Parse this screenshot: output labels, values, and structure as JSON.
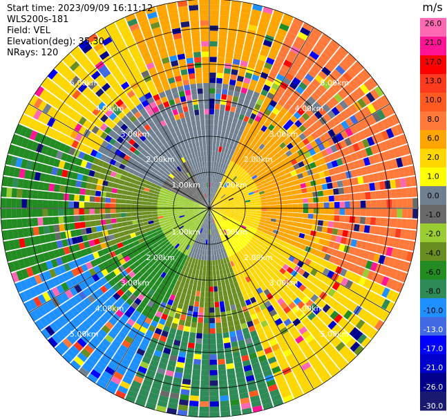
{
  "metadata": {
    "start_time": "Start time: 2023/09/09 16:11:12",
    "instrument": "WLS200s-181",
    "field": "Field: VEL",
    "elevation": "Elevation(deg): 35.30",
    "nrays": "NRays: 120"
  },
  "range_labels": [
    "1.00km",
    "2.00km",
    "3.00km",
    "4.00km",
    "5.00km"
  ],
  "range_rings_km": [
    1,
    2,
    3,
    4,
    5
  ],
  "max_range_km": 5.8,
  "colorbar": {
    "unit": "m/s",
    "ticks": [
      "26.0",
      "21.0",
      "17.0",
      "13.0",
      "10.0",
      "8.0",
      "6.0",
      "2.0",
      "1.0",
      "0.0",
      "-1.0",
      "-2.0",
      "-4.0",
      "-6.0",
      "-8.0",
      "-10.0",
      "-13.0",
      "-17.0",
      "-21.0",
      "-26.0",
      "-30.0"
    ],
    "colors": [
      "#ff69b4",
      "#ff1493",
      "#ff0000",
      "#ff3b1f",
      "#ff5a1f",
      "#ff7a3a",
      "#ffa500",
      "#ffd700",
      "#ffff00",
      "#708090",
      "#696969",
      "#9acd32",
      "#6b8e23",
      "#228b22",
      "#2e8b57",
      "#1e90ff",
      "#4169e1",
      "#0000ff",
      "#0000cd",
      "#00008b",
      "#191970"
    ]
  },
  "chart_data": {
    "type": "heatmap",
    "title": "",
    "field": "VEL",
    "unit": "m/s",
    "n_rays": 120,
    "elevation_deg": 35.3,
    "max_range_km": 5.8,
    "pattern": [
      {
        "azimuth_deg": 0,
        "near": "0.0",
        "mid": "0.0",
        "far": "6.0"
      },
      {
        "azimuth_deg": 45,
        "near": "2.0",
        "mid": "6.0",
        "far": "8.0"
      },
      {
        "azimuth_deg": 90,
        "near": "2.0",
        "mid": "6.0",
        "far": "8.0"
      },
      {
        "azimuth_deg": 135,
        "near": "1.0",
        "mid": "2.0",
        "far": "2.0"
      },
      {
        "azimuth_deg": 180,
        "near": "0.0",
        "mid": "-4.0",
        "far": "-8.0"
      },
      {
        "azimuth_deg": 225,
        "near": "-2.0",
        "mid": "-6.0",
        "far": "-10.0"
      },
      {
        "azimuth_deg": 270,
        "near": "-2.0",
        "mid": "-4.0",
        "far": "-6.0"
      },
      {
        "azimuth_deg": 315,
        "near": "-1.0",
        "mid": "0.0",
        "far": "2.0"
      }
    ]
  }
}
